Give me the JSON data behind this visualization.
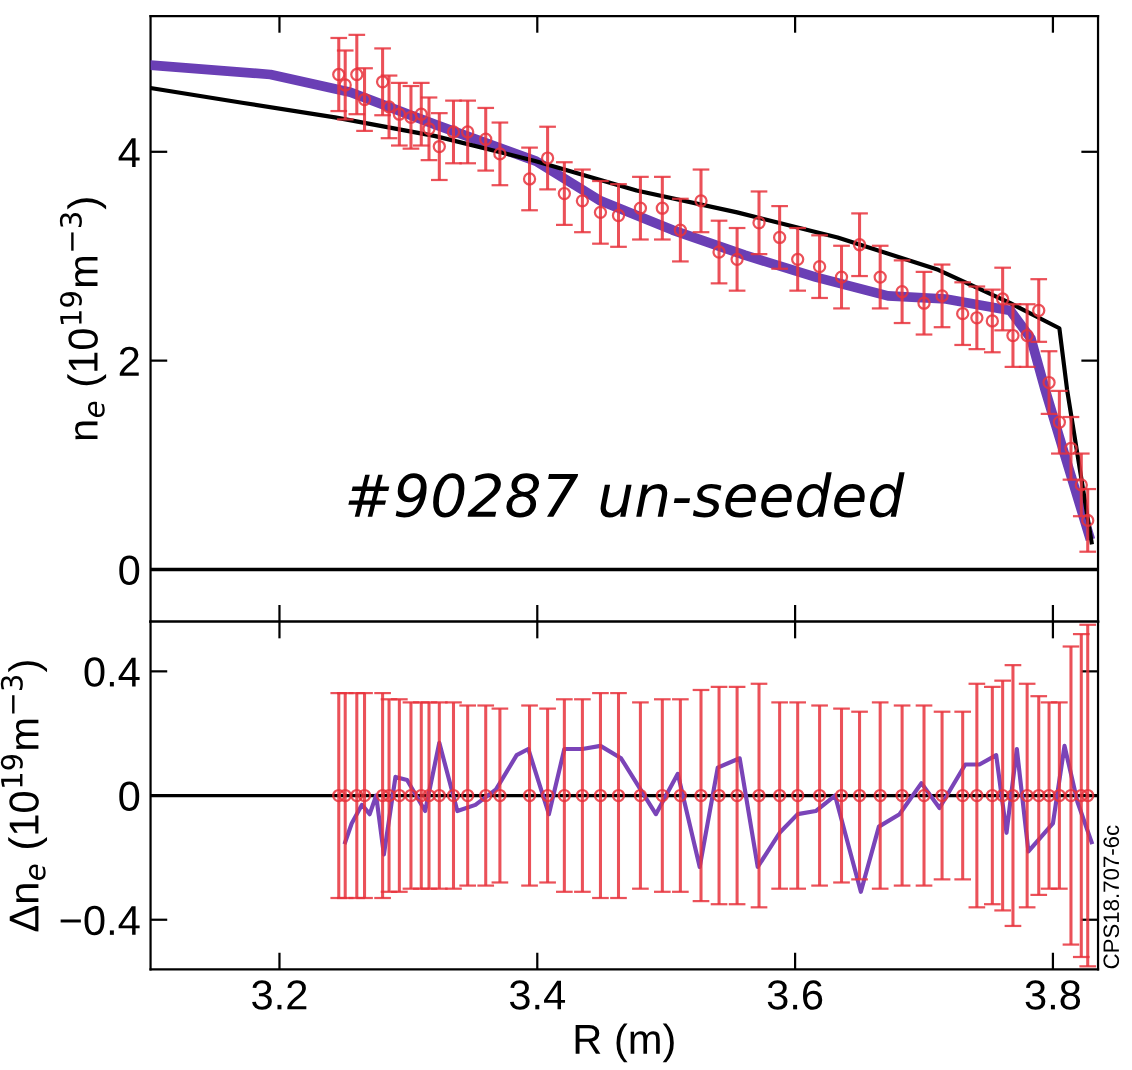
{
  "chart_data": [
    {
      "type": "scatter",
      "ylabel": "n$_{e}$ (10$^{19}$m$^{−3}$)",
      "xlim": [
        3.1,
        3.835
      ],
      "ylim": [
        -0.5,
        5.3
      ],
      "xticks": [
        3.2,
        3.4,
        3.6,
        3.8
      ],
      "yticks": [
        0,
        2,
        4
      ],
      "tick_labels": "y",
      "grid": false,
      "legend": false,
      "annotations": [
        "#90287 un-seeded"
      ],
      "ref_lines": [
        {
          "axis": "y",
          "value": 0,
          "color": "#000000"
        }
      ],
      "series": [
        {
          "type": "line",
          "color": "#000000",
          "x": [
            3.1,
            3.171,
            3.243,
            3.321,
            3.399,
            3.477,
            3.555,
            3.633,
            3.711,
            3.767,
            3.805,
            3.811,
            3.83
          ],
          "values": [
            4.61,
            4.47,
            4.33,
            4.15,
            3.91,
            3.63,
            3.42,
            3.18,
            2.87,
            2.55,
            2.31,
            1.72,
            0.26
          ],
          "marker": "none"
        },
        {
          "type": "line",
          "color": "#6a3fb5",
          "x": [
            3.1,
            3.193,
            3.255,
            3.321,
            3.399,
            3.449,
            3.505,
            3.561,
            3.616,
            3.672,
            3.717,
            3.767,
            3.783,
            3.794,
            3.811,
            3.828
          ],
          "values": [
            4.83,
            4.74,
            4.57,
            4.26,
            3.91,
            3.53,
            3.25,
            3.01,
            2.8,
            2.62,
            2.59,
            2.48,
            2.21,
            1.72,
            1.02,
            0.33
          ],
          "marker": "none"
        },
        {
          "color": "#e8323c",
          "marker": "circle",
          "x": [
            3.246,
            3.251,
            3.26,
            3.266,
            3.28,
            3.285,
            3.293,
            3.302,
            3.31,
            3.316,
            3.324,
            3.335,
            3.346,
            3.36,
            3.371,
            3.394,
            3.408,
            3.421,
            3.435,
            3.449,
            3.463,
            3.48,
            3.497,
            3.511,
            3.527,
            3.541,
            3.555,
            3.572,
            3.588,
            3.602,
            3.619,
            3.636,
            3.65,
            3.666,
            3.683,
            3.7,
            3.714,
            3.73,
            3.741,
            3.753,
            3.761,
            3.769,
            3.78,
            3.789,
            3.797,
            3.805,
            3.814,
            3.822,
            3.827
          ],
          "values": [
            4.74,
            4.64,
            4.74,
            4.5,
            4.67,
            4.43,
            4.36,
            4.33,
            4.36,
            4.22,
            4.05,
            4.19,
            4.19,
            4.12,
            3.98,
            3.74,
            3.94,
            3.6,
            3.53,
            3.42,
            3.39,
            3.46,
            3.46,
            3.25,
            3.53,
            3.04,
            2.97,
            3.32,
            3.18,
            2.97,
            2.9,
            2.8,
            3.11,
            2.8,
            2.66,
            2.55,
            2.62,
            2.45,
            2.41,
            2.38,
            2.59,
            2.24,
            2.24,
            2.48,
            1.79,
            1.41,
            1.16,
            0.81,
            0.47
          ],
          "errors": [
            0.35,
            0.33,
            0.38,
            0.3,
            0.32,
            0.3,
            0.3,
            0.3,
            0.3,
            0.3,
            0.32,
            0.3,
            0.3,
            0.3,
            0.3,
            0.3,
            0.3,
            0.3,
            0.3,
            0.3,
            0.3,
            0.3,
            0.3,
            0.3,
            0.3,
            0.3,
            0.3,
            0.3,
            0.3,
            0.3,
            0.3,
            0.3,
            0.3,
            0.3,
            0.3,
            0.3,
            0.3,
            0.3,
            0.3,
            0.3,
            0.3,
            0.3,
            0.3,
            0.3,
            0.3,
            0.3,
            0.3,
            0.3,
            0.3
          ]
        }
      ]
    },
    {
      "type": "scatter",
      "xlabel": "R (m)",
      "ylabel": "Δn$_{e}$ (10$^{19}$m$^{−3}$)",
      "xlim": [
        3.1,
        3.835
      ],
      "ylim": [
        -0.56,
        0.56
      ],
      "xticks": [
        3.2,
        3.4,
        3.6,
        3.8
      ],
      "yticks": [
        {
          "value": -0.4,
          "label": "−0.4"
        },
        0,
        0.4
      ],
      "grid": false,
      "legend": false,
      "annotations": [
        "CPS18.707-6c"
      ],
      "ref_lines": [
        {
          "axis": "y",
          "value": 0,
          "color": "#000000"
        }
      ],
      "series": [
        {
          "color": "#e8323c",
          "marker": "circle",
          "x": [
            3.246,
            3.251,
            3.26,
            3.266,
            3.28,
            3.285,
            3.293,
            3.302,
            3.31,
            3.316,
            3.324,
            3.335,
            3.346,
            3.36,
            3.371,
            3.394,
            3.408,
            3.421,
            3.435,
            3.449,
            3.463,
            3.48,
            3.497,
            3.511,
            3.527,
            3.541,
            3.555,
            3.572,
            3.588,
            3.602,
            3.619,
            3.636,
            3.65,
            3.666,
            3.683,
            3.7,
            3.714,
            3.73,
            3.741,
            3.753,
            3.761,
            3.769,
            3.78,
            3.789,
            3.797,
            3.805,
            3.814,
            3.822,
            3.827
          ],
          "values": [
            0,
            0,
            0,
            0,
            0,
            0,
            0,
            0,
            0,
            0,
            0,
            0,
            0,
            0,
            0,
            0,
            0,
            0,
            0,
            0,
            0,
            0,
            0,
            0,
            0,
            0,
            0,
            0,
            0,
            0,
            0,
            0,
            0,
            0,
            0,
            0,
            0,
            0,
            0,
            0,
            0,
            0,
            0,
            0,
            0,
            0,
            0,
            0,
            0
          ],
          "errors": [
            0.33,
            0.33,
            0.33,
            0.33,
            0.33,
            0.31,
            0.31,
            0.3,
            0.3,
            0.3,
            0.3,
            0.3,
            0.29,
            0.29,
            0.28,
            0.29,
            0.28,
            0.31,
            0.31,
            0.33,
            0.33,
            0.3,
            0.31,
            0.31,
            0.34,
            0.35,
            0.35,
            0.36,
            0.3,
            0.3,
            0.29,
            0.28,
            0.27,
            0.3,
            0.29,
            0.29,
            0.27,
            0.27,
            0.36,
            0.35,
            0.37,
            0.42,
            0.36,
            0.32,
            0.3,
            0.3,
            0.48,
            0.52,
            0.55
          ]
        },
        {
          "type": "line",
          "color": "#7a44b8",
          "marker": "none",
          "x": [
            3.251,
            3.256,
            3.264,
            3.27,
            3.275,
            3.281,
            3.29,
            3.299,
            3.313,
            3.324,
            3.338,
            3.352,
            3.368,
            3.384,
            3.393,
            3.409,
            3.421,
            3.435,
            3.449,
            3.465,
            3.492,
            3.509,
            3.526,
            3.54,
            3.557,
            3.571,
            3.588,
            3.602,
            3.616,
            3.631,
            3.651,
            3.665,
            3.681,
            3.698,
            3.712,
            3.732,
            3.743,
            3.756,
            3.764,
            3.772,
            3.781,
            3.8,
            3.809,
            3.819,
            3.83
          ],
          "values": [
            -0.15,
            -0.09,
            -0.03,
            -0.06,
            0,
            -0.19,
            0.06,
            0.05,
            -0.05,
            0.17,
            -0.05,
            -0.03,
            0.02,
            0.13,
            0.15,
            -0.06,
            0.15,
            0.15,
            0.16,
            0.12,
            -0.06,
            0.07,
            -0.23,
            0.09,
            0.12,
            -0.23,
            -0.12,
            -0.06,
            -0.05,
            0,
            -0.31,
            -0.1,
            -0.06,
            0.04,
            -0.04,
            0.1,
            0.1,
            0.13,
            -0.12,
            0.15,
            -0.18,
            -0.09,
            0.16,
            -0.02,
            -0.15
          ]
        }
      ]
    }
  ]
}
